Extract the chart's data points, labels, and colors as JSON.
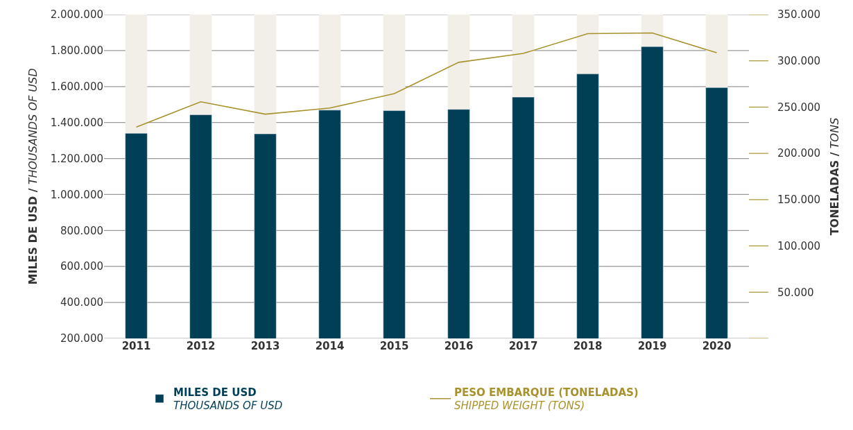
{
  "chart_data": {
    "type": "bar",
    "categories": [
      "2011",
      "2012",
      "2013",
      "2014",
      "2015",
      "2016",
      "2017",
      "2018",
      "2019",
      "2020"
    ],
    "ylabel": "MILES DE USD / THOUSANDS OF USD",
    "y2label": "TONELADAS / TONS",
    "series": [
      {
        "name": "MILES DE USD\nTHOUSANDS OF USD",
        "color": "#003f56",
        "values": [
          1340000,
          1443000,
          1337000,
          1469000,
          1466000,
          1473000,
          1541000,
          1670000,
          1822000,
          1594000
        ]
      },
      {
        "name": "PESO EMBARQUE (TONELADAS)\nSHIPPED WEIGHT (TONS)",
        "type": "line",
        "axis": "y2",
        "color": "#a8922e",
        "values": [
          228400,
          255700,
          242400,
          249000,
          264500,
          298400,
          308000,
          329400,
          330100,
          308700
        ]
      }
    ],
    "ylim": [
      200000,
      2000000
    ],
    "yticks": [
      {
        "value": 200000,
        "label": "200.000"
      },
      {
        "value": 400000,
        "label": "400.000"
      },
      {
        "value": 600000,
        "label": "600.000"
      },
      {
        "value": 800000,
        "label": "800.000"
      },
      {
        "value": 1000000,
        "label": "1.000.000"
      },
      {
        "value": 1200000,
        "label": "1.200.000"
      },
      {
        "value": 1400000,
        "label": "1.400.000"
      },
      {
        "value": 1600000,
        "label": "1.600.000"
      },
      {
        "value": 1800000,
        "label": "1.800.000"
      },
      {
        "value": 2000000,
        "label": "2.000.000"
      }
    ],
    "y2lim": [
      0,
      350000
    ],
    "y2ticks": [
      {
        "value": 0,
        "label": null
      },
      {
        "value": 50000,
        "label": "50.000"
      },
      {
        "value": 100000,
        "label": "100.000"
      },
      {
        "value": 150000,
        "label": "150.000"
      },
      {
        "value": 200000,
        "label": "200.000"
      },
      {
        "value": 250000,
        "label": "250.000"
      },
      {
        "value": 300000,
        "label": "300.000"
      },
      {
        "value": 350000,
        "label": "350.000"
      }
    ],
    "grid": "y",
    "legend": "bottom",
    "marker": "none",
    "line_style": "solid"
  }
}
